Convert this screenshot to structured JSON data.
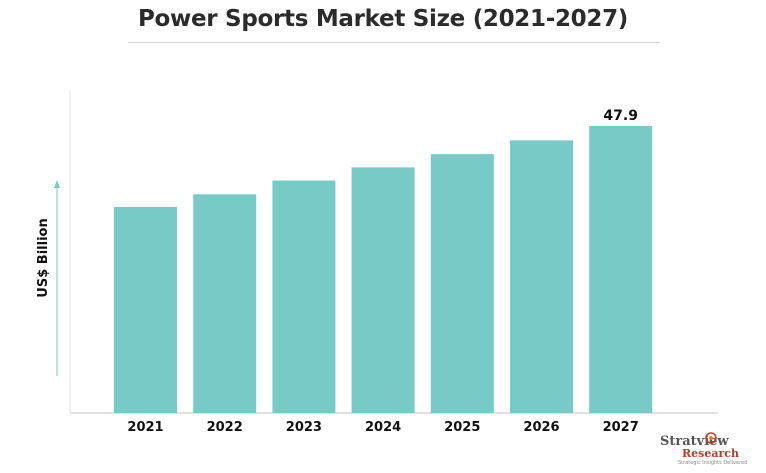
{
  "title": "Power Sports Market Size (2021-2027)",
  "chart_data": {
    "type": "bar",
    "categories": [
      "2021",
      "2022",
      "2023",
      "2024",
      "2025",
      "2026",
      "2027"
    ],
    "values": [
      34.4,
      36.5,
      38.8,
      41.0,
      43.2,
      45.5,
      47.9
    ],
    "data_labels": {
      "2027": "47.9"
    },
    "ylabel": "US$ Billion",
    "xlabel": "",
    "ylim": [
      0,
      50
    ],
    "bar_color": "#78cac7",
    "axis_color": "#cfcfcf",
    "axis_arrow_color": "#78cac7",
    "grid": false,
    "legend": "none"
  },
  "logo": {
    "brand": "Stratview",
    "brand2": "Research",
    "tagline": "Strategic Insights Delivered"
  }
}
